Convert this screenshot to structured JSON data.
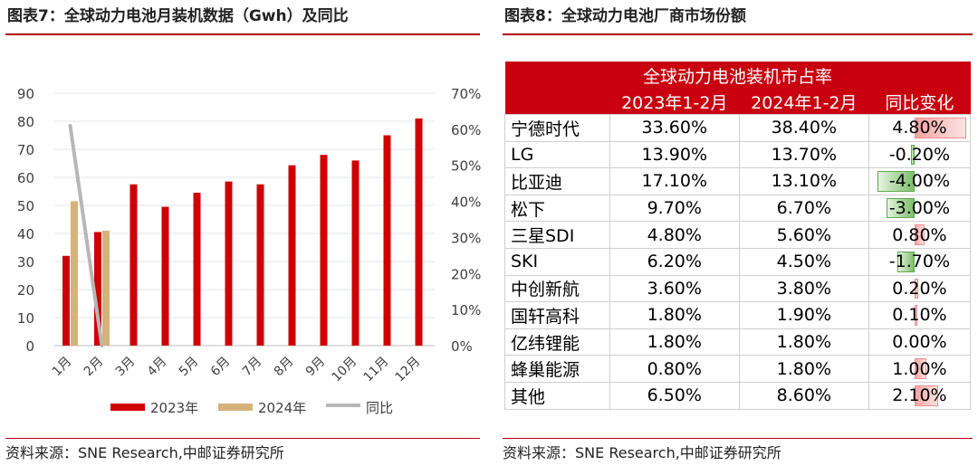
{
  "left_panel": {
    "header": "图表7：全球动力电池月装机数据（Gwh）及同比",
    "source": "资料来源：SNE Research,中邮证券研究所"
  },
  "right_panel": {
    "header": "图表8：全球动力电池厂商市场份额",
    "source": "资料来源：SNE Research,中邮证券研究所"
  },
  "colors": {
    "accent": "#b2000b",
    "bar2023": "#d00000",
    "bar2024": "#d6b27a",
    "yoy_line": "#b7b7b7",
    "table_header": "#c8000f",
    "pos_bar": "#f2a3a3",
    "neg_bar": "#7cbf6a"
  },
  "chart_data": {
    "type": "bar",
    "categories": [
      "1月",
      "2月",
      "3月",
      "4月",
      "5月",
      "6月",
      "7月",
      "8月",
      "9月",
      "10月",
      "11月",
      "12月"
    ],
    "series": [
      {
        "name": "2023年",
        "kind": "bar",
        "axis": "left",
        "values": [
          32,
          40.5,
          57.5,
          49.5,
          54.5,
          58.5,
          57.5,
          64.3,
          68,
          66,
          75,
          81
        ]
      },
      {
        "name": "2024年",
        "kind": "bar",
        "axis": "left",
        "values": [
          51.5,
          41,
          null,
          null,
          null,
          null,
          null,
          null,
          null,
          null,
          null,
          null
        ]
      },
      {
        "name": "同比",
        "kind": "line",
        "axis": "right",
        "values": [
          61,
          0,
          null,
          null,
          null,
          null,
          null,
          null,
          null,
          null,
          null,
          null
        ]
      }
    ],
    "y_left": {
      "min": 0,
      "max": 90,
      "ticks": [
        "0",
        "10",
        "20",
        "30",
        "40",
        "50",
        "60",
        "70",
        "80",
        "90"
      ]
    },
    "y_right": {
      "min": 0,
      "max": 70,
      "ticks": [
        "0%",
        "10%",
        "20%",
        "30%",
        "40%",
        "50%",
        "60%",
        "70%"
      ]
    },
    "legend": [
      "2023年",
      "2024年",
      "同比"
    ],
    "legend_position": "bottom",
    "grid": true
  },
  "share_table": {
    "title": "全球动力电池装机市占率",
    "columns": [
      "2023年1-2月",
      "2024年1-2月",
      "同比变化"
    ],
    "rows": [
      {
        "name": "宁德时代",
        "y2023": "33.60%",
        "y2024": "38.40%",
        "change": "4.80%",
        "delta": 4.8
      },
      {
        "name": "LG",
        "y2023": "13.90%",
        "y2024": "13.70%",
        "change": "-0.20%",
        "delta": -0.2
      },
      {
        "name": "比亚迪",
        "y2023": "17.10%",
        "y2024": "13.10%",
        "change": "-4.00%",
        "delta": -4.0
      },
      {
        "name": "松下",
        "y2023": "9.70%",
        "y2024": "6.70%",
        "change": "-3.00%",
        "delta": -3.0
      },
      {
        "name": "三星SDI",
        "y2023": "4.80%",
        "y2024": "5.60%",
        "change": "0.80%",
        "delta": 0.8
      },
      {
        "name": "SKI",
        "y2023": "6.20%",
        "y2024": "4.50%",
        "change": "-1.70%",
        "delta": -1.7
      },
      {
        "name": "中创新航",
        "y2023": "3.60%",
        "y2024": "3.80%",
        "change": "0.20%",
        "delta": 0.2
      },
      {
        "name": "国轩高科",
        "y2023": "1.80%",
        "y2024": "1.90%",
        "change": "0.10%",
        "delta": 0.1
      },
      {
        "name": "亿纬锂能",
        "y2023": "1.80%",
        "y2024": "1.80%",
        "change": "0.00%",
        "delta": 0.0
      },
      {
        "name": "蜂巢能源",
        "y2023": "0.80%",
        "y2024": "1.80%",
        "change": "1.00%",
        "delta": 1.0
      },
      {
        "name": "其他",
        "y2023": "6.50%",
        "y2024": "8.60%",
        "change": "2.10%",
        "delta": 2.1
      }
    ]
  }
}
